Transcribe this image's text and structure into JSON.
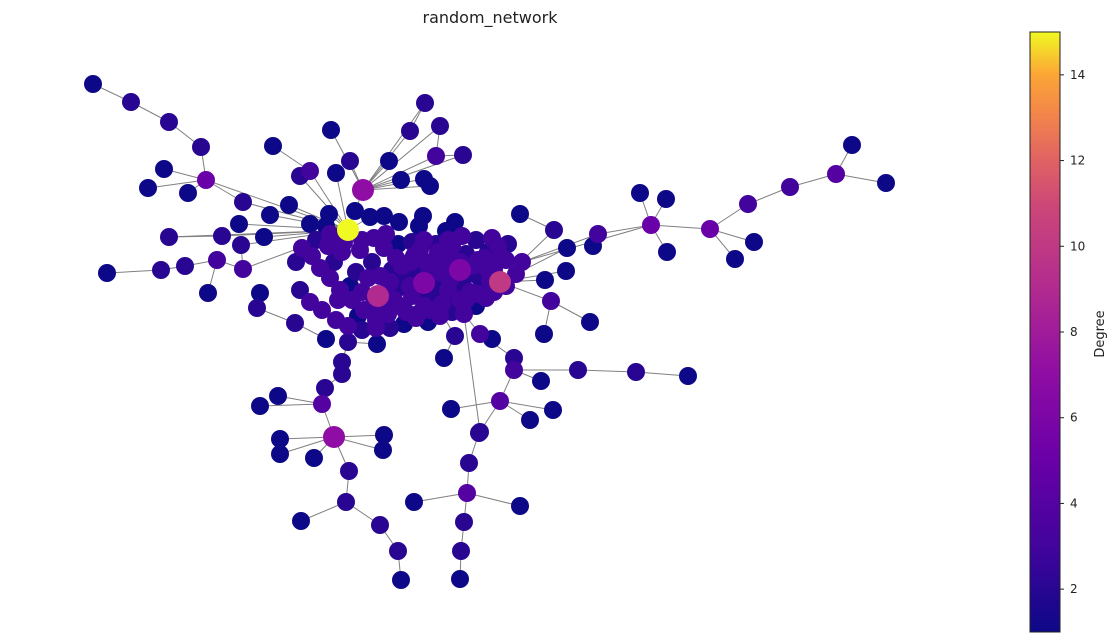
{
  "title": "random_network",
  "colorbar": {
    "label": "Degree",
    "min": 1,
    "max": 15,
    "ticks": [
      2,
      4,
      6,
      8,
      10,
      12,
      14
    ],
    "colormap": "plasma"
  },
  "chart_data": {
    "type": "network",
    "node_color_attribute": "Degree",
    "edges_color": "#808080",
    "nodes": [
      {
        "id": "hub",
        "deg": 15
      },
      {
        "id": "a1",
        "deg": 7
      },
      {
        "id": "a2",
        "deg": 9
      },
      {
        "id": "a3",
        "deg": 10
      },
      {
        "id": "a4",
        "deg": 7
      },
      {
        "id": "a5",
        "deg": 6
      },
      {
        "id": "a6",
        "deg": 6
      },
      {
        "id": "a7",
        "deg": 5
      },
      {
        "id": "a8",
        "deg": 5
      },
      {
        "id": "a9",
        "deg": 5
      },
      {
        "id": "a10",
        "deg": 4
      },
      {
        "id": "a11",
        "deg": 4
      },
      {
        "id": "a12",
        "deg": 4
      },
      {
        "id": "a13",
        "deg": 4
      },
      {
        "id": "a14",
        "deg": 3
      },
      {
        "id": "a15",
        "deg": 3
      },
      {
        "id": "a16",
        "deg": 3
      },
      {
        "id": "a17",
        "deg": 3
      },
      {
        "id": "a18",
        "deg": 3
      },
      {
        "id": "a19",
        "deg": 2
      },
      {
        "id": "a20",
        "deg": 2
      },
      {
        "id": "a21",
        "deg": 2
      },
      {
        "id": "a22",
        "deg": 2
      },
      {
        "id": "a23",
        "deg": 2
      },
      {
        "id": "a24",
        "deg": 2
      },
      {
        "id": "a25",
        "deg": 2
      },
      {
        "id": "a26",
        "deg": 1
      },
      {
        "id": "a27",
        "deg": 1
      },
      {
        "id": "a28",
        "deg": 1
      }
    ]
  }
}
